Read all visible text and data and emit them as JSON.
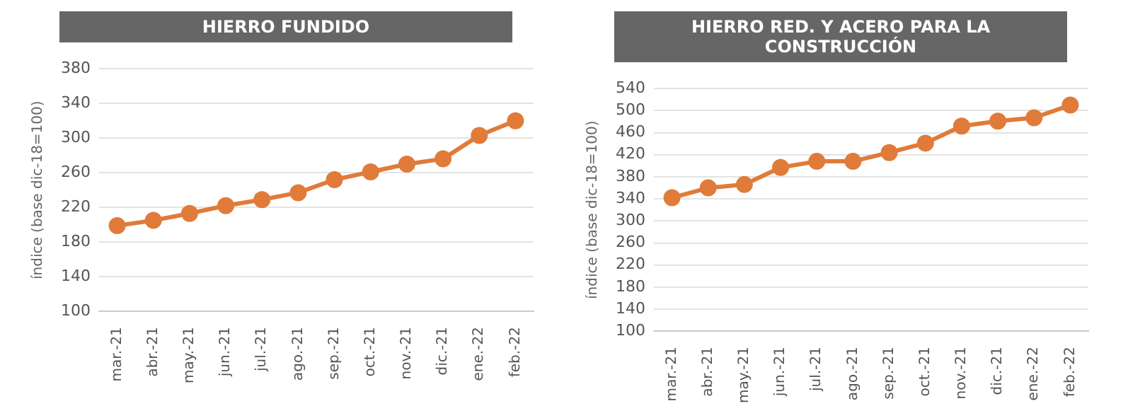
{
  "chart_data": [
    {
      "type": "line",
      "title": "HIERRO FUNDIDO",
      "ylabel": "índice (base dic-18=100)",
      "categories": [
        "mar.-21",
        "abr.-21",
        "may.-21",
        "jun.-21",
        "jul.-21",
        "ago.-21",
        "sep.-21",
        "oct.-21",
        "nov.-21",
        "dic.-21",
        "ene.-22",
        "feb.-22"
      ],
      "series": [
        {
          "color": "#e07b39",
          "values": [
            199,
            205,
            213,
            222,
            229,
            237,
            252,
            261,
            270,
            276,
            303,
            320
          ]
        }
      ],
      "ylim": [
        100,
        380
      ],
      "yticks": [
        100,
        140,
        180,
        220,
        260,
        300,
        340,
        380
      ],
      "grid": "y",
      "legend": false,
      "marker": "circle",
      "line_style": "solid"
    },
    {
      "type": "line",
      "title": "HIERRO RED. Y ACERO PARA LA CONSTRUCCIÓN",
      "ylabel": "índice (base dic-18=100)",
      "categories": [
        "mar.-21",
        "abr.-21",
        "may.-21",
        "jun.-21",
        "jul.-21",
        "ago.-21",
        "sep.-21",
        "oct.-21",
        "nov.-21",
        "dic.-21",
        "ene.-22",
        "feb.-22"
      ],
      "series": [
        {
          "color": "#e07b39",
          "values": [
            342,
            360,
            366,
            397,
            408,
            408,
            424,
            441,
            472,
            481,
            487,
            510
          ]
        }
      ],
      "ylim": [
        100,
        540
      ],
      "yticks": [
        100,
        140,
        180,
        220,
        260,
        300,
        340,
        380,
        420,
        460,
        500,
        540
      ],
      "grid": "y",
      "legend": false,
      "marker": "circle",
      "line_style": "solid"
    }
  ]
}
